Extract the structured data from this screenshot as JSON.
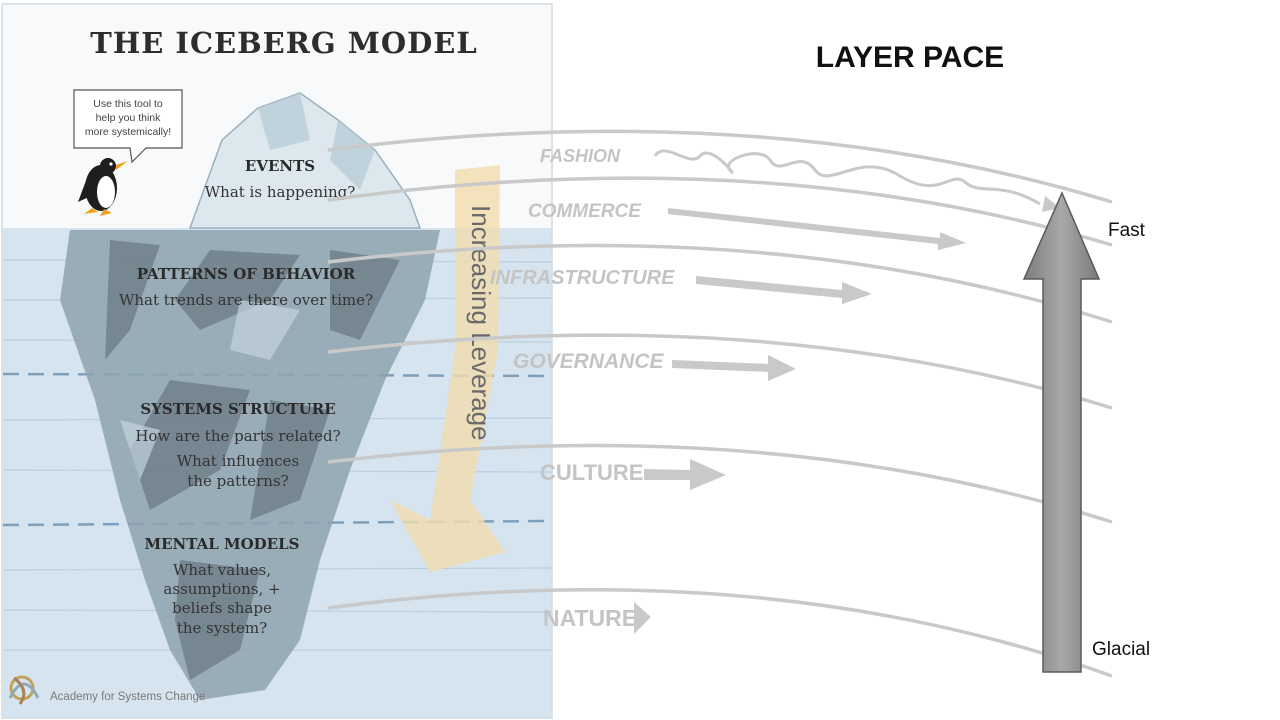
{
  "iceberg": {
    "title": "THE ICEBERG MODEL",
    "speech_bubble": [
      "Use this tool to",
      "help you think",
      "more systemically!"
    ],
    "levels": [
      {
        "heading": "EVENTS",
        "lines": [
          "What is happening?"
        ]
      },
      {
        "heading": "PATTERNS OF BEHAVIOR",
        "lines": [
          "What trends are there over time?"
        ]
      },
      {
        "heading": "SYSTEMS STRUCTURE",
        "lines": [
          "How are the parts related?",
          "What influences",
          "the patterns?"
        ]
      },
      {
        "heading": "MENTAL MODELS",
        "lines": [
          "What values,",
          "assumptions, +",
          "beliefs shape",
          "the system?"
        ]
      }
    ],
    "leverage_label": "Increasing Leverage",
    "footer": "Academy for Systems Change",
    "colors": {
      "water": "#c9dcea",
      "ice": "#9fb3bf",
      "rock": "#6f7d85",
      "leverage_arrow": "#f3dcae"
    }
  },
  "pace": {
    "title": "LAYER PACE",
    "layers": [
      "FASHION",
      "COMMERCE",
      "INFRASTRUCTURE",
      "GOVERNANCE",
      "CULTURE",
      "NATURE"
    ],
    "fast_label": "Fast",
    "slow_label": "Glacial",
    "colors": {
      "arc": "#c8c8c8",
      "layer_text": "#c4c4c4",
      "arrow_fill": "#8a8a8a"
    }
  },
  "icons": {
    "mascot": "penguin-icon",
    "logo": "knot-logo-icon"
  }
}
